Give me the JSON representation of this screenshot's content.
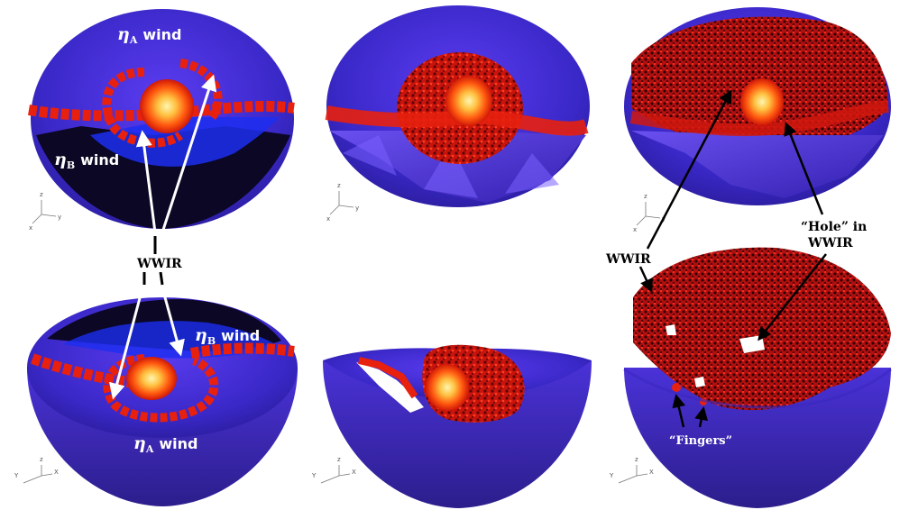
{
  "labels": {
    "eta_symbol": "η",
    "sub_a": "A",
    "sub_b": "B",
    "wind_word": "wind",
    "wwir": "WWIR",
    "hole_line1": "“Hole” in",
    "hole_line2": "WWIR",
    "fingers": "“Fingers”"
  },
  "axes": {
    "x": "x",
    "y": "y",
    "z": "z",
    "X": "X",
    "Y": "Y"
  },
  "colors": {
    "background_wind": "#3a2ad0",
    "dark_wind": "#0a0620",
    "blue_wind": "#1c2ef0",
    "wwir_red": "#e01a10",
    "hot_core": "#ffd070",
    "arrow_white": "#ffffff",
    "arrow_black": "#000000"
  }
}
